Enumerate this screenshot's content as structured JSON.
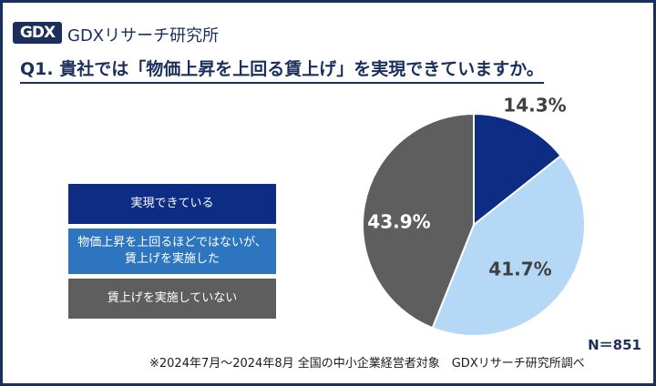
{
  "header": {
    "logo_mark": "GDX",
    "logo_text": "GDXリサーチ研究所",
    "question": "Q1. 貴社では「物価上昇を上回る賃上げ」を実現できていますか。"
  },
  "chart_data": {
    "type": "pie",
    "categories": [
      "実現できている",
      "物価上昇を上回るほどではないが、賃上げを実施した",
      "賃上げを実施していない"
    ],
    "legend_lines": [
      [
        "実現できている"
      ],
      [
        "物価上昇を上回るほどではないが、",
        "賃上げを実施した"
      ],
      [
        "賃上げを実施していない"
      ]
    ],
    "values": [
      14.3,
      41.7,
      43.9
    ],
    "labels": [
      "14.3%",
      "41.7%",
      "43.9%"
    ],
    "colors": [
      "#0c2d83",
      "#b4d8f5",
      "#5e5e5e"
    ],
    "legend_colors": [
      "#0c2d83",
      "#2e75c0",
      "#5e5e5e"
    ],
    "label_colors": [
      "#404040",
      "#404040",
      "#ffffff"
    ],
    "legend_position": "left"
  },
  "footer": {
    "n": "N＝851",
    "note": "※2024年7月～2024年8月 全国の中小企業経営者対象　GDXリサーチ研究所調べ"
  }
}
